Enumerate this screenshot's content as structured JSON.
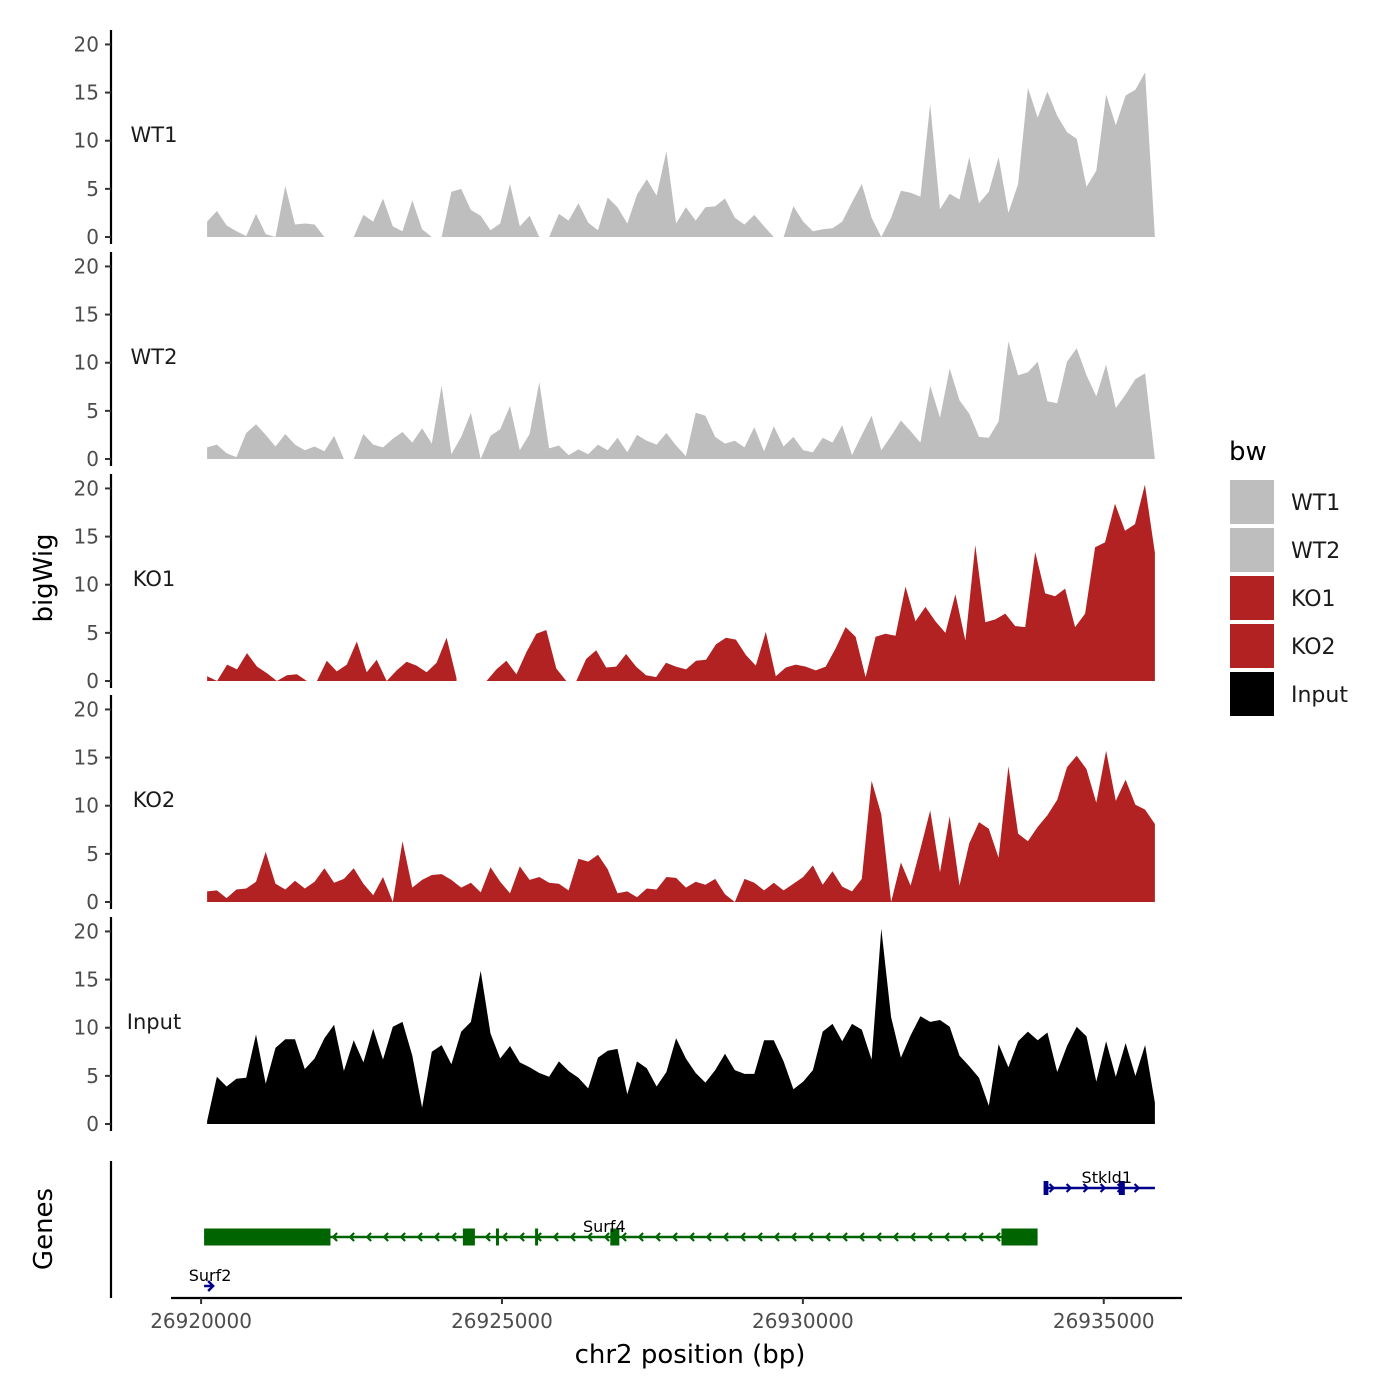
{
  "chart_data": {
    "type": "area",
    "ylabel": "bigWig",
    "genes_label": "Genes",
    "xlabel": "chr2 position (bp)",
    "xlim": [
      26919500,
      26936300
    ],
    "data_range": [
      26920100,
      26935850
    ],
    "ylim": [
      0,
      21.5
    ],
    "y_ticks": [
      0,
      5,
      10,
      15,
      20
    ],
    "x_ticks": [
      26920000,
      26925000,
      26930000,
      26935000
    ],
    "x_tick_labels": [
      "26920000",
      "26925000",
      "26930000",
      "26935000"
    ],
    "tracks": [
      {
        "name": "WT1",
        "color": "#bebebe",
        "values": [
          1.6,
          2.7,
          1.2,
          0.6,
          0.1,
          2.4,
          0.3,
          0,
          5.3,
          1.3,
          1.4,
          1.3,
          0,
          null,
          null,
          0,
          2.3,
          1.6,
          4,
          1.1,
          0.6,
          3.8,
          0.8,
          0,
          0,
          4.7,
          5,
          2.8,
          2.2,
          0.7,
          1.4,
          5.5,
          1.1,
          2.2,
          0,
          0,
          2.4,
          1.7,
          3.5,
          1.5,
          0.7,
          4.1,
          3.1,
          1.4,
          4.4,
          6,
          4.3,
          8.9,
          1.4,
          3.1,
          1.7,
          3.1,
          3.2,
          4,
          2,
          1.3,
          2.3,
          1.1,
          0,
          0,
          3.2,
          1.6,
          0.6,
          0.8,
          0.9,
          1.6,
          3.6,
          5.5,
          2,
          0,
          2,
          4.8,
          4.6,
          4.2,
          13.8,
          2.9,
          4.5,
          3.9,
          8.3,
          3.5,
          4.7,
          8.3,
          2.5,
          5.5,
          15.5,
          12.4,
          15.1,
          12.6,
          10.9,
          10.2,
          5.2,
          6.9,
          14.8,
          11.6,
          14.7,
          15.3,
          17.1,
          0
        ]
      },
      {
        "name": "WT2",
        "color": "#bebebe",
        "values": [
          1.2,
          1.5,
          0.6,
          0.2,
          2.7,
          3.6,
          2.5,
          1.3,
          2.6,
          1.5,
          0.9,
          1.3,
          0.8,
          2.4,
          0,
          0,
          2.6,
          1.5,
          1.2,
          2.1,
          2.8,
          1.7,
          3.2,
          1.6,
          7.6,
          0.5,
          2.3,
          4.8,
          0,
          2.4,
          3.1,
          5.5,
          0.9,
          2.6,
          8,
          1.1,
          1.4,
          0.4,
          1,
          0.5,
          1.5,
          0.9,
          2.2,
          0.7,
          2.5,
          1.9,
          1.5,
          2.7,
          1.4,
          0.3,
          4.8,
          4.5,
          2.3,
          1.6,
          1.9,
          1.2,
          3.3,
          0.8,
          3.4,
          1.3,
          2.3,
          0.9,
          0.7,
          2.2,
          1.7,
          3.5,
          0.4,
          2.5,
          4.5,
          0.9,
          2.4,
          4,
          2.9,
          1.7,
          7.6,
          4.3,
          9.4,
          6.1,
          4.7,
          2.3,
          2.2,
          3.9,
          12.2,
          8.7,
          9,
          10.1,
          6,
          5.8,
          10.1,
          11.5,
          8.7,
          6.5,
          9.8,
          5.3,
          6.7,
          8.3,
          8.9,
          0
        ]
      },
      {
        "name": "KO1",
        "color": "#b22222",
        "values": [
          0.5,
          0,
          1.7,
          1.2,
          2.9,
          1.5,
          0.8,
          0,
          0.6,
          0.7,
          0,
          0,
          2.1,
          1,
          1.7,
          4.1,
          0.9,
          2.2,
          0,
          1.1,
          2,
          1.6,
          0.9,
          1.9,
          4.5,
          0.3,
          null,
          null,
          0,
          1.2,
          2.1,
          0.7,
          3,
          4.9,
          5.3,
          1.3,
          0,
          0,
          2.3,
          3.2,
          1.4,
          1.5,
          2.8,
          1.5,
          0.6,
          0.4,
          1.9,
          1.5,
          1.2,
          2.1,
          2.2,
          3.8,
          4.5,
          4.3,
          2.7,
          1.6,
          5.1,
          0.5,
          1.4,
          1.7,
          1.5,
          1.1,
          1.5,
          3.4,
          5.6,
          4.6,
          0.4,
          4.6,
          4.9,
          4.7,
          9.8,
          6.2,
          7.7,
          6.2,
          5,
          9,
          4.2,
          14.1,
          6.1,
          6.4,
          7,
          5.7,
          5.6,
          13.4,
          9.1,
          8.8,
          9.6,
          5.6,
          7,
          13.9,
          14.4,
          18.4,
          15.6,
          16.3,
          20.4,
          13.3
        ]
      },
      {
        "name": "KO2",
        "color": "#b22222",
        "values": [
          1.1,
          1.2,
          0.4,
          1.3,
          1.4,
          2.1,
          5.2,
          1.9,
          1.3,
          2.2,
          1.4,
          2.1,
          3.5,
          2,
          2.4,
          3.5,
          1.9,
          0.7,
          2.6,
          0,
          6.3,
          1.5,
          2.3,
          2.8,
          2.9,
          2.3,
          1.5,
          2,
          1,
          3.6,
          2.1,
          0.9,
          3.7,
          2.3,
          2.6,
          2,
          1.9,
          1.2,
          4.5,
          4.2,
          4.9,
          3.4,
          0.9,
          1.1,
          0.5,
          1.4,
          1.3,
          2.6,
          2.5,
          1.5,
          2.1,
          1.8,
          2.4,
          0.8,
          0,
          2.4,
          2,
          1.2,
          2,
          1.2,
          1.9,
          2.6,
          3.8,
          1.8,
          3.2,
          1.6,
          1.1,
          2.4,
          12.6,
          9.1,
          0,
          4.1,
          1.7,
          5.5,
          9.5,
          3.1,
          8.9,
          1.7,
          6.1,
          8.3,
          7.6,
          4.6,
          14.1,
          7.1,
          6.3,
          7.8,
          9,
          10.6,
          14,
          15.2,
          13.8,
          10.3,
          15.7,
          10.5,
          12.7,
          10.1,
          9.6,
          8.1
        ]
      },
      {
        "name": "Input",
        "color": "#000000",
        "values": [
          0.3,
          4.9,
          3.9,
          4.7,
          4.8,
          9.3,
          4.2,
          7.9,
          8.8,
          8.8,
          5.7,
          6.8,
          8.9,
          10.3,
          5.5,
          8.7,
          6.4,
          9.9,
          6.7,
          10.1,
          10.6,
          7.1,
          1.7,
          7.5,
          8.2,
          6.2,
          9.6,
          10.6,
          15.9,
          9.4,
          6.8,
          8.1,
          6.4,
          5.9,
          5.3,
          4.9,
          6.5,
          5.5,
          4.8,
          3.7,
          6.9,
          7.6,
          7.8,
          3.1,
          6.5,
          5.8,
          3.9,
          5.4,
          8.9,
          6.8,
          5.3,
          4.3,
          5.6,
          7.3,
          5.6,
          5.2,
          5.2,
          8.7,
          8.7,
          6.5,
          3.6,
          4.4,
          5.6,
          9.6,
          10.4,
          8.6,
          10.4,
          9.8,
          6.7,
          20.3,
          11.1,
          6.9,
          9.2,
          11.2,
          10.6,
          10.8,
          10.1,
          7.1,
          6,
          4.8,
          1.9,
          8.3,
          5.9,
          8.6,
          9.6,
          8.7,
          9.5,
          5.4,
          8.1,
          10.1,
          9.1,
          4.4,
          8.6,
          4.9,
          8.4,
          5,
          8.2,
          2.2
        ]
      }
    ],
    "genes": [
      {
        "name": "Stkld1",
        "strand": "+",
        "color": "#00008b",
        "start": 26934000,
        "end": 26935850,
        "row": 0,
        "exons": [
          [
            26934000,
            26934080
          ],
          [
            26935250,
            26935350
          ]
        ]
      },
      {
        "name": "Surf4",
        "strand": "-",
        "color": "#006400",
        "start": 26920050,
        "end": 26933900,
        "row": 1,
        "exons": [
          [
            26920050,
            26922150
          ],
          [
            26924350,
            26924550
          ],
          [
            26924900,
            26924950
          ],
          [
            26925550,
            26925600
          ],
          [
            26926800,
            26926950
          ],
          [
            26933300,
            26933900
          ]
        ]
      },
      {
        "name": "Surf2",
        "strand": "+",
        "color": "#00008b",
        "start": 26920050,
        "end": 26920200,
        "row": 2,
        "exons": []
      }
    ],
    "legend": {
      "title": "bw",
      "entries": [
        {
          "label": "WT1",
          "color": "#bebebe"
        },
        {
          "label": "WT2",
          "color": "#bebebe"
        },
        {
          "label": "KO1",
          "color": "#b22222"
        },
        {
          "label": "KO2",
          "color": "#b22222"
        },
        {
          "label": "Input",
          "color": "#000000"
        }
      ]
    }
  }
}
